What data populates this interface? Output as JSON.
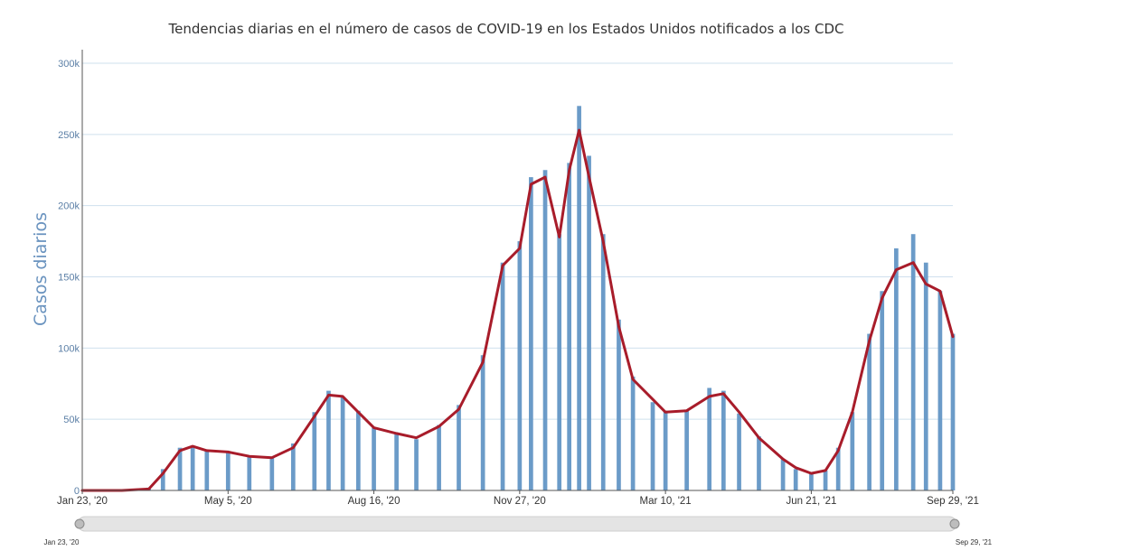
{
  "chart_data": {
    "type": "bar",
    "title": "Tendencias diarias en el número de casos de COVID-19 en los Estados Unidos notificados a los CDC",
    "xlabel": "",
    "ylabel": "Casos diarios",
    "x_range": [
      "2020-01-23",
      "2021-09-29"
    ],
    "ylim": [
      0,
      300000
    ],
    "yticks": [
      0,
      50000,
      100000,
      150000,
      200000,
      250000,
      300000
    ],
    "ytick_labels": [
      "0",
      "50k",
      "100k",
      "150k",
      "200k",
      "250k",
      "300k"
    ],
    "xticks": [
      "2020-01-23",
      "2020-05-05",
      "2020-08-16",
      "2020-11-27",
      "2021-03-10",
      "2021-06-21",
      "2021-09-29"
    ],
    "xtick_labels": [
      "Jan 23, '20",
      "May 5, '20",
      "Aug 16, '20",
      "Nov 27, '20",
      "Mar 10, '21",
      "Jun 21, '21",
      "Sep 29, '21"
    ],
    "grid": true,
    "legend": "none",
    "range_slider": {
      "start_label": "Jan 23, '20",
      "end_label": "Sep 29, '21"
    },
    "colors": {
      "bars": "#6b9bc8",
      "moving_average": "#a81c2a",
      "axis_text": "#5b7fa6"
    },
    "series": [
      {
        "type": "bar",
        "x": [
          "2020-01-23",
          "2020-02-20",
          "2020-03-10",
          "2020-03-20",
          "2020-04-01",
          "2020-04-10",
          "2020-04-20",
          "2020-05-05",
          "2020-05-20",
          "2020-06-05",
          "2020-06-20",
          "2020-07-05",
          "2020-07-15",
          "2020-07-25",
          "2020-08-05",
          "2020-08-16",
          "2020-09-01",
          "2020-09-15",
          "2020-10-01",
          "2020-10-15",
          "2020-11-01",
          "2020-11-15",
          "2020-11-27",
          "2020-12-05",
          "2020-12-15",
          "2020-12-25",
          "2021-01-01",
          "2021-01-08",
          "2021-01-15",
          "2021-01-25",
          "2021-02-05",
          "2021-02-15",
          "2021-03-01",
          "2021-03-10",
          "2021-03-25",
          "2021-04-10",
          "2021-04-20",
          "2021-05-01",
          "2021-05-15",
          "2021-06-01",
          "2021-06-10",
          "2021-06-21",
          "2021-07-01",
          "2021-07-10",
          "2021-07-20",
          "2021-08-01",
          "2021-08-10",
          "2021-08-20",
          "2021-09-01",
          "2021-09-10",
          "2021-09-20",
          "2021-09-29"
        ],
        "y": [
          0,
          0,
          2000,
          15000,
          30000,
          31000,
          28000,
          27000,
          24000,
          23000,
          33000,
          55000,
          70000,
          66000,
          56000,
          44000,
          40000,
          36000,
          46000,
          60000,
          95000,
          160000,
          175000,
          220000,
          225000,
          180000,
          230000,
          270000,
          235000,
          180000,
          120000,
          80000,
          62000,
          56000,
          56000,
          72000,
          70000,
          54000,
          38000,
          22000,
          15000,
          12000,
          14000,
          30000,
          55000,
          110000,
          140000,
          170000,
          180000,
          160000,
          140000,
          110000
        ]
      },
      {
        "type": "line",
        "x": [
          "2020-01-23",
          "2020-02-20",
          "2020-03-10",
          "2020-03-20",
          "2020-04-01",
          "2020-04-10",
          "2020-04-20",
          "2020-05-05",
          "2020-05-20",
          "2020-06-05",
          "2020-06-20",
          "2020-07-05",
          "2020-07-15",
          "2020-07-25",
          "2020-08-05",
          "2020-08-16",
          "2020-09-01",
          "2020-09-15",
          "2020-10-01",
          "2020-10-15",
          "2020-11-01",
          "2020-11-15",
          "2020-11-27",
          "2020-12-05",
          "2020-12-15",
          "2020-12-25",
          "2021-01-01",
          "2021-01-08",
          "2021-01-15",
          "2021-01-25",
          "2021-02-05",
          "2021-02-15",
          "2021-03-01",
          "2021-03-10",
          "2021-03-25",
          "2021-04-10",
          "2021-04-20",
          "2021-05-01",
          "2021-05-15",
          "2021-06-01",
          "2021-06-10",
          "2021-06-21",
          "2021-07-01",
          "2021-07-10",
          "2021-07-20",
          "2021-08-01",
          "2021-08-10",
          "2021-08-20",
          "2021-09-01",
          "2021-09-10",
          "2021-09-20",
          "2021-09-29"
        ],
        "y": [
          0,
          0,
          1000,
          12000,
          28000,
          31000,
          28000,
          27000,
          24000,
          23000,
          30000,
          52000,
          67000,
          66000,
          55000,
          44000,
          40000,
          37000,
          45000,
          57000,
          90000,
          158000,
          170000,
          215000,
          220000,
          178000,
          225000,
          253000,
          220000,
          175000,
          115000,
          78000,
          64000,
          55000,
          56000,
          66000,
          68000,
          55000,
          37000,
          22000,
          16000,
          12000,
          14000,
          28000,
          55000,
          105000,
          135000,
          155000,
          160000,
          145000,
          140000,
          108000
        ]
      }
    ]
  }
}
